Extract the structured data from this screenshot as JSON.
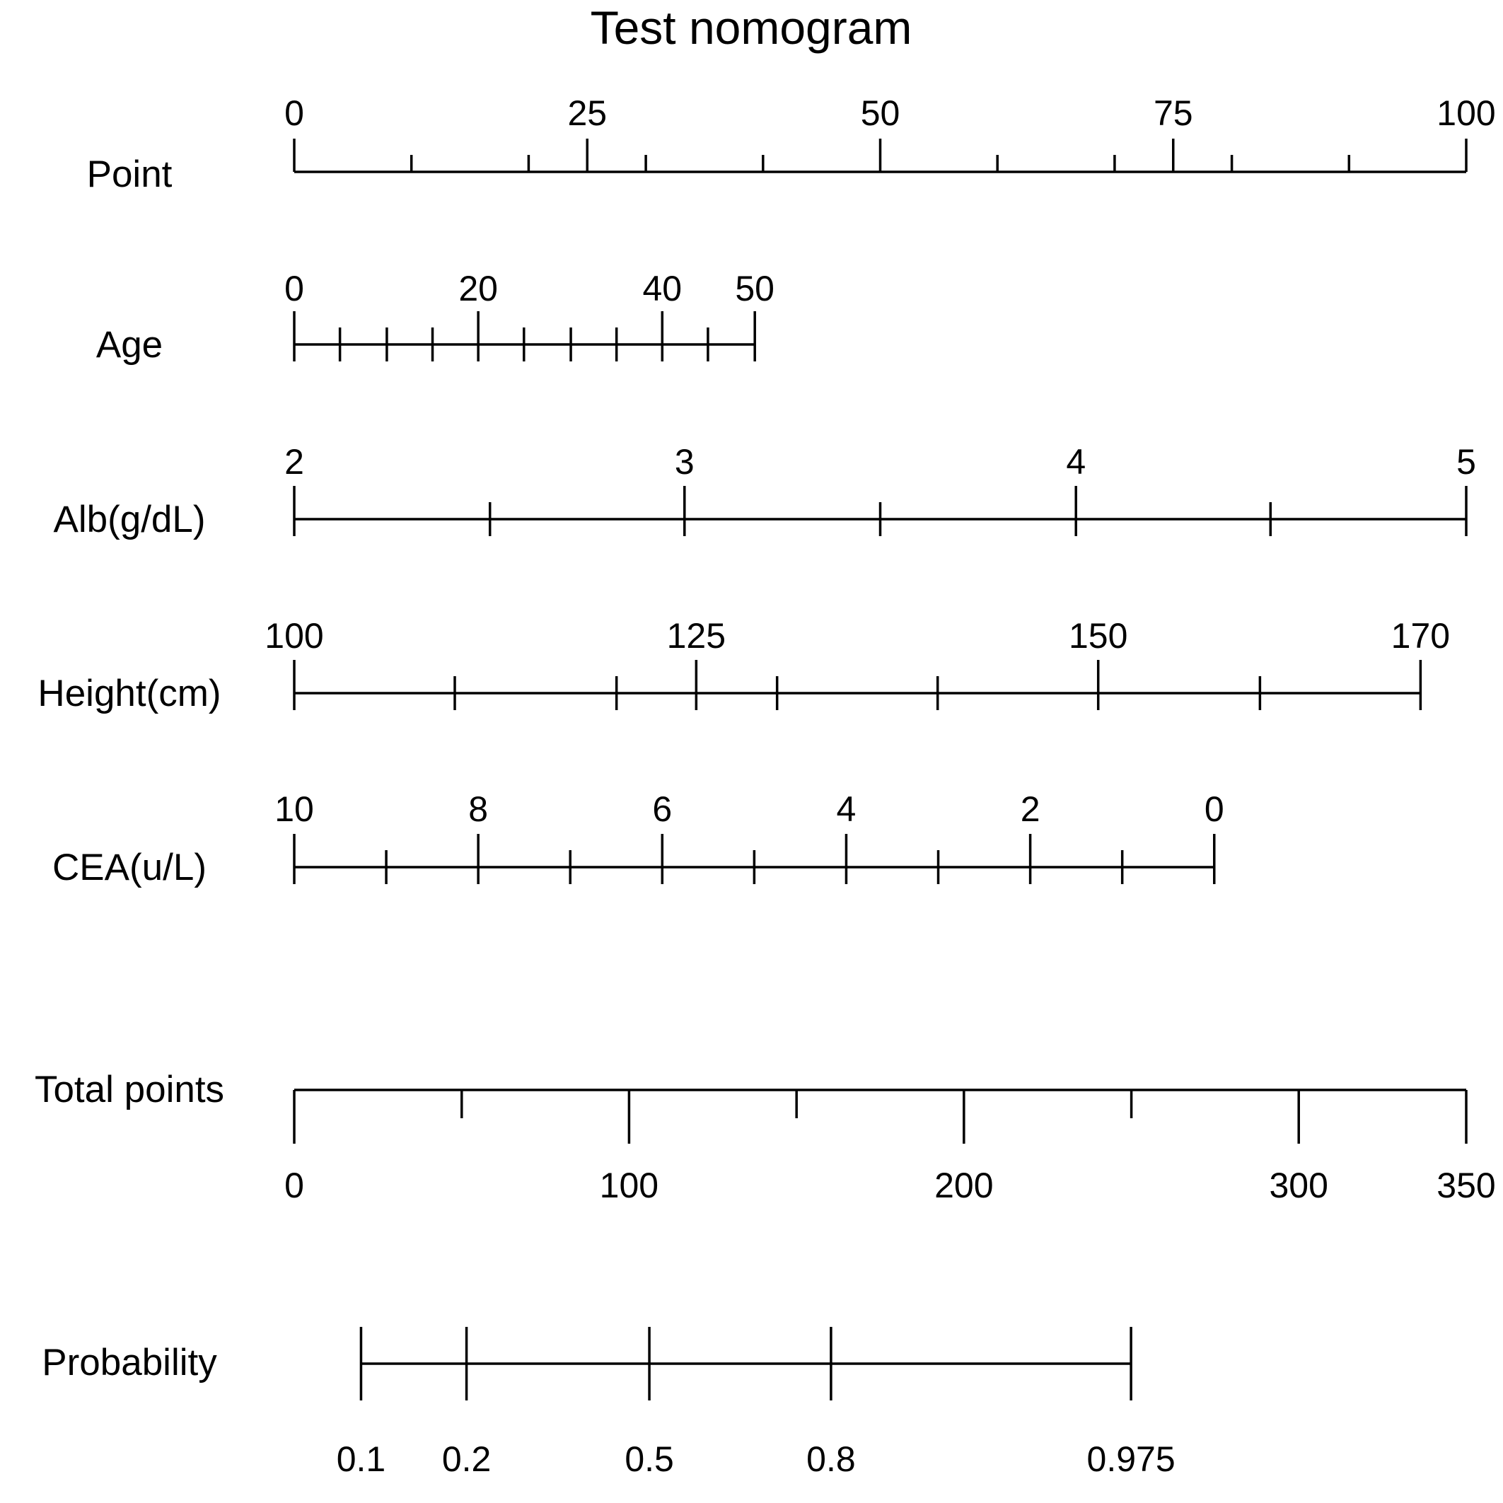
{
  "chart_data": {
    "type": "nomogram",
    "title": "Test nomogram",
    "scales": [
      {
        "label": "Point",
        "labeled_ticks": [
          {
            "value": 0,
            "text": "0",
            "points": 0
          },
          {
            "value": 25,
            "text": "25",
            "points": 25
          },
          {
            "value": 50,
            "text": "50",
            "points": 50
          },
          {
            "value": 75,
            "text": "75",
            "points": 75
          },
          {
            "value": 100,
            "text": "100",
            "points": 100
          }
        ],
        "minor_ticks_points": [
          10,
          20,
          30,
          40,
          60,
          70,
          80,
          90
        ],
        "labels_position": "above"
      },
      {
        "label": "Age",
        "labeled_ticks": [
          {
            "value": 0,
            "text": "0",
            "points": 0
          },
          {
            "value": 20,
            "text": "20",
            "points": 15.7
          },
          {
            "value": 40,
            "text": "40",
            "points": 31.4
          },
          {
            "value": 50,
            "text": "50",
            "points": 39.3
          }
        ],
        "minor_ticks_points": [
          3.9,
          7.9,
          11.8,
          19.6,
          23.6,
          27.5,
          35.3
        ],
        "labels_position": "above"
      },
      {
        "label": "Alb(g/dL)",
        "labeled_ticks": [
          {
            "value": 2,
            "text": "2",
            "points": 0
          },
          {
            "value": 3,
            "text": "3",
            "points": 33.3
          },
          {
            "value": 4,
            "text": "4",
            "points": 66.7
          },
          {
            "value": 5,
            "text": "5",
            "points": 100
          }
        ],
        "minor_ticks_points": [
          16.7,
          50,
          83.3
        ],
        "labels_position": "above"
      },
      {
        "label": "Height(cm)",
        "labeled_ticks": [
          {
            "value": 100,
            "text": "100",
            "points": 0
          },
          {
            "value": 125,
            "text": "125",
            "points": 34.3
          },
          {
            "value": 150,
            "text": "150",
            "points": 68.6
          },
          {
            "value": 170,
            "text": "170",
            "points": 96.1
          }
        ],
        "minor_ticks_points": [
          13.7,
          27.5,
          41.2,
          54.9,
          82.4
        ],
        "labels_position": "above"
      },
      {
        "label": "CEA(u/L)",
        "labeled_ticks": [
          {
            "value": 10,
            "text": "10",
            "points": 0
          },
          {
            "value": 8,
            "text": "8",
            "points": 15.7
          },
          {
            "value": 6,
            "text": "6",
            "points": 31.4
          },
          {
            "value": 4,
            "text": "4",
            "points": 47.1
          },
          {
            "value": 2,
            "text": "2",
            "points": 62.8
          },
          {
            "value": 0,
            "text": "0",
            "points": 78.5
          }
        ],
        "minor_ticks_points": [
          7.85,
          23.55,
          39.25,
          54.95,
          70.65
        ],
        "labels_position": "above"
      },
      {
        "label": "Total points",
        "labeled_ticks": [
          {
            "value": 0,
            "text": "0",
            "points": 0
          },
          {
            "value": 100,
            "text": "100",
            "points": 28.57
          },
          {
            "value": 200,
            "text": "200",
            "points": 57.14
          },
          {
            "value": 300,
            "text": "300",
            "points": 85.71
          },
          {
            "value": 350,
            "text": "350",
            "points": 100
          }
        ],
        "minor_ticks_points": [
          14.29,
          42.86,
          71.43
        ],
        "labels_position": "below",
        "ticks_direction": "down"
      },
      {
        "label": "Probability",
        "labeled_ticks": [
          {
            "value": 0.1,
            "text": "0.1",
            "points": 5.7
          },
          {
            "value": 0.2,
            "text": "0.2",
            "points": 14.7
          },
          {
            "value": 0.5,
            "text": "0.5",
            "points": 30.3
          },
          {
            "value": 0.8,
            "text": "0.8",
            "points": 45.8
          },
          {
            "value": 0.975,
            "text": "0.975",
            "points": 71.4
          }
        ],
        "minor_ticks_points": [],
        "labels_position": "below",
        "ticks_direction": "both"
      }
    ]
  }
}
